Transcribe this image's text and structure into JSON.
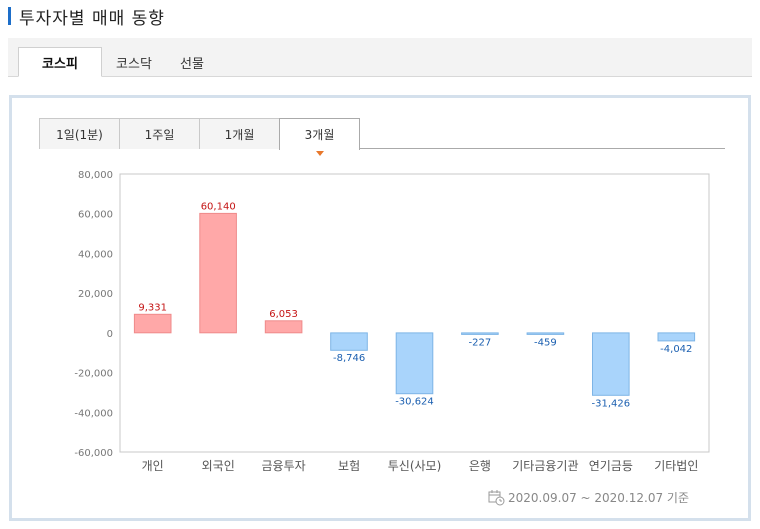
{
  "section": {
    "title": "투자자별 매매 동향"
  },
  "market_tabs": [
    {
      "label": "코스피",
      "active": true
    },
    {
      "label": "코스닥",
      "active": false
    },
    {
      "label": "선물",
      "active": false
    }
  ],
  "period_tabs": [
    {
      "label": "1일(1분)",
      "active": false
    },
    {
      "label": "1주일",
      "active": false
    },
    {
      "label": "1개월",
      "active": false
    },
    {
      "label": "3개월",
      "active": true
    }
  ],
  "footer": {
    "date_range": "2020.09.07 ~ 2020.12.07 기준"
  },
  "colors": {
    "positive_fill": "#ffa8a8",
    "positive_stroke": "#ef8a8a",
    "positive_label": "#c41414",
    "negative_fill": "#a9d4fb",
    "negative_stroke": "#7db4e6",
    "negative_label": "#1b5fb0",
    "accent": "#1d6ec9",
    "tab_caret": "#e8782c"
  },
  "chart_data": {
    "type": "bar",
    "categories": [
      "개인",
      "외국인",
      "금융투자",
      "보험",
      "투신(사모)",
      "은행",
      "기타금융기관",
      "연기금등",
      "기타법인"
    ],
    "values": [
      9331,
      60140,
      6053,
      -8746,
      -30624,
      -227,
      -459,
      -31426,
      -4042
    ],
    "value_labels": [
      "9,331",
      "60,140",
      "6,053",
      "-8,746",
      "-30,624",
      "-227",
      "-459",
      "-31,426",
      "-4,042"
    ],
    "ylim": [
      -60000,
      80000
    ],
    "yticks": [
      80000,
      60000,
      40000,
      20000,
      0,
      -20000,
      -40000,
      -60000
    ],
    "ytick_labels": [
      "80,000",
      "60,000",
      "40,000",
      "20,000",
      "0",
      "-20,000",
      "-40,000",
      "-60,000"
    ],
    "title": "",
    "xlabel": "",
    "ylabel": "",
    "grid": false,
    "legend": "none"
  }
}
